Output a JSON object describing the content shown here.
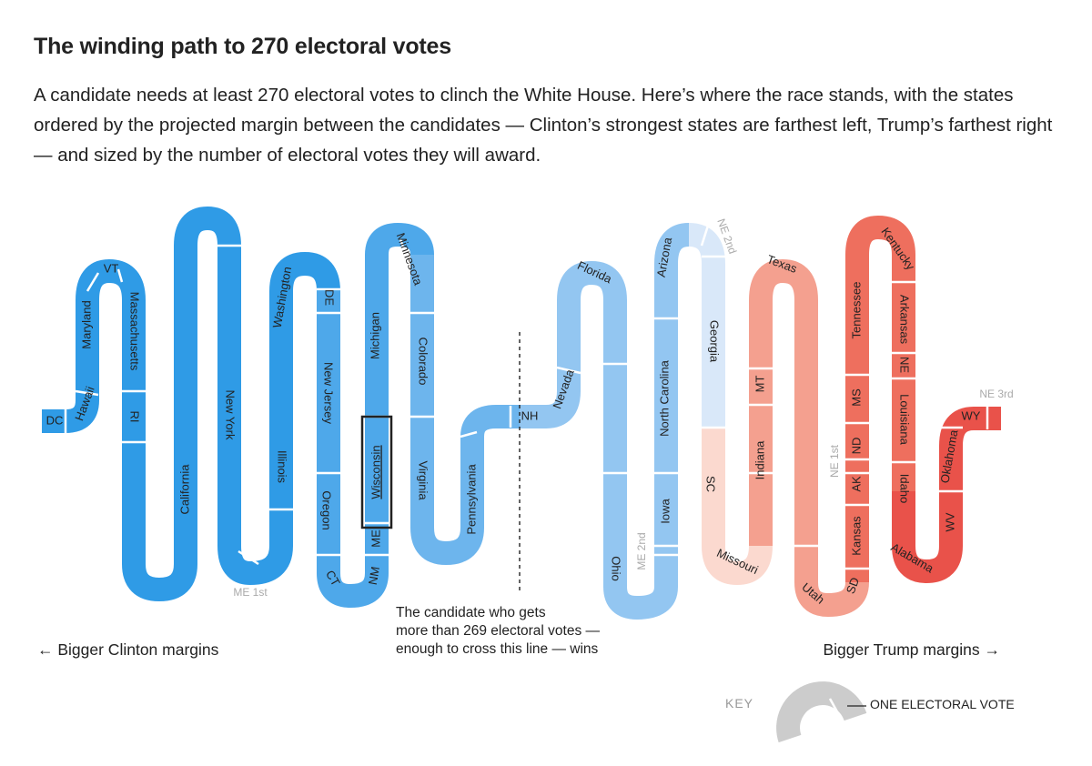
{
  "title": "The winding path to 270 electoral votes",
  "subtitle": "A candidate needs at least 270 electoral votes to clinch the White House. Here’s where the race stands, with the states ordered by the projected margin between the candidates — Clinton’s strongest states are farthest left, Trump’s farthest right — and sized by the number of electoral votes they will award.",
  "threshold_note": [
    "The candidate who gets",
    "more than 269 electoral votes —",
    "enough to cross this line — wins"
  ],
  "left_label": "← Bigger Clinton margins",
  "right_label": "Bigger Trump margins →",
  "key": {
    "label": "KEY",
    "value_label": "ONE ELECTORAL VOTE"
  },
  "colors": {
    "clinton_strong": "#2f9be6",
    "clinton_likely": "#4ea8ea",
    "clinton_lean": "#6db5ed",
    "clinton_tilt": "#93c6f1",
    "clinton_slight": "#d9e8f9",
    "trump_slight": "#fbd9cf",
    "trump_lean": "#f4a08f",
    "trump_likely": "#f28a78",
    "trump_strong": "#ee6f5e",
    "trump_safe": "#e9524a",
    "key_gray": "#cccccc",
    "threshold_line": "#222222",
    "highlight_box": "#222222"
  },
  "chart_data": {
    "type": "diagram",
    "threshold": 270,
    "highlighted": "Wisconsin",
    "states": [
      {
        "name": "DC",
        "ev": 3,
        "party": "Clinton"
      },
      {
        "name": "Hawaii",
        "ev": 4,
        "party": "Clinton"
      },
      {
        "name": "Maryland",
        "ev": 10,
        "party": "Clinton"
      },
      {
        "name": "VT",
        "ev": 3,
        "party": "Clinton"
      },
      {
        "name": "Massachusetts",
        "ev": 11,
        "party": "Clinton"
      },
      {
        "name": "RI",
        "ev": 4,
        "party": "Clinton"
      },
      {
        "name": "California",
        "ev": 55,
        "party": "Clinton"
      },
      {
        "name": "New York",
        "ev": 29,
        "party": "Clinton"
      },
      {
        "name": "ME 1st",
        "ev": 1,
        "party": "Clinton"
      },
      {
        "name": "Illinois",
        "ev": 20,
        "party": "Clinton"
      },
      {
        "name": "Washington",
        "ev": 12,
        "party": "Clinton"
      },
      {
        "name": "DE",
        "ev": 3,
        "party": "Clinton"
      },
      {
        "name": "New Jersey",
        "ev": 14,
        "party": "Clinton"
      },
      {
        "name": "Oregon",
        "ev": 7,
        "party": "Clinton"
      },
      {
        "name": "CT",
        "ev": 7,
        "party": "Clinton"
      },
      {
        "name": "NM",
        "ev": 5,
        "party": "Clinton"
      },
      {
        "name": "ME",
        "ev": 2,
        "party": "Clinton"
      },
      {
        "name": "Wisconsin",
        "ev": 10,
        "party": "Clinton"
      },
      {
        "name": "Michigan",
        "ev": 16,
        "party": "Clinton"
      },
      {
        "name": "Minnesota",
        "ev": 10,
        "party": "Clinton"
      },
      {
        "name": "Colorado",
        "ev": 9,
        "party": "Clinton"
      },
      {
        "name": "Virginia",
        "ev": 13,
        "party": "Clinton"
      },
      {
        "name": "Pennsylvania",
        "ev": 20,
        "party": "Clinton"
      },
      {
        "name": "NH",
        "ev": 4,
        "party": "Clinton"
      },
      {
        "name": "Nevada",
        "ev": 6,
        "party": "Clinton"
      },
      {
        "name": "Florida",
        "ev": 29,
        "party": "Clinton"
      },
      {
        "name": "Ohio",
        "ev": 18,
        "party": "Clinton"
      },
      {
        "name": "ME 2nd",
        "ev": 1,
        "party": "Clinton"
      },
      {
        "name": "Iowa",
        "ev": 6,
        "party": "Clinton"
      },
      {
        "name": "North Carolina",
        "ev": 15,
        "party": "Clinton"
      },
      {
        "name": "Arizona",
        "ev": 11,
        "party": "Clinton"
      },
      {
        "name": "NE 2nd",
        "ev": 1,
        "party": "Clinton"
      },
      {
        "name": "Georgia",
        "ev": 16,
        "party": "Clinton"
      },
      {
        "name": "SC",
        "ev": 9,
        "party": "Trump"
      },
      {
        "name": "Missouri",
        "ev": 10,
        "party": "Trump"
      },
      {
        "name": "Indiana",
        "ev": 11,
        "party": "Trump"
      },
      {
        "name": "MT",
        "ev": 3,
        "party": "Trump"
      },
      {
        "name": "Texas",
        "ev": 38,
        "party": "Trump"
      },
      {
        "name": "Utah",
        "ev": 6,
        "party": "Trump"
      },
      {
        "name": "SD",
        "ev": 3,
        "party": "Trump"
      },
      {
        "name": "Kansas",
        "ev": 6,
        "party": "Trump"
      },
      {
        "name": "AK",
        "ev": 3,
        "party": "Trump"
      },
      {
        "name": "NE 1st",
        "ev": 1,
        "party": "Trump"
      },
      {
        "name": "ND",
        "ev": 3,
        "party": "Trump"
      },
      {
        "name": "MS",
        "ev": 6,
        "party": "Trump"
      },
      {
        "name": "Tennessee",
        "ev": 11,
        "party": "Trump"
      },
      {
        "name": "Kentucky",
        "ev": 8,
        "party": "Trump"
      },
      {
        "name": "Arkansas",
        "ev": 6,
        "party": "Trump"
      },
      {
        "name": "NE",
        "ev": 2,
        "party": "Trump"
      },
      {
        "name": "Louisiana",
        "ev": 8,
        "party": "Trump"
      },
      {
        "name": "Idaho",
        "ev": 4,
        "party": "Trump"
      },
      {
        "name": "Alabama",
        "ev": 9,
        "party": "Trump"
      },
      {
        "name": "WV",
        "ev": 5,
        "party": "Trump"
      },
      {
        "name": "Oklahoma",
        "ev": 7,
        "party": "Trump"
      },
      {
        "name": "WY",
        "ev": 3,
        "party": "Trump"
      },
      {
        "name": "NE 3rd",
        "ev": 1,
        "party": "Trump"
      }
    ]
  },
  "labels": {
    "dc": "DC",
    "hawaii": "Hawaii",
    "maryland": "Maryland",
    "vt": "VT",
    "massachusetts": "Massachusetts",
    "ri": "RI",
    "california": "California",
    "new_york": "New York",
    "me1": "ME 1st",
    "illinois": "Illinois",
    "washington": "Washington",
    "de": "DE",
    "new_jersey": "New Jersey",
    "oregon": "Oregon",
    "ct": "CT",
    "nm": "NM",
    "me": "ME",
    "wisconsin": "Wisconsin",
    "michigan": "Michigan",
    "minnesota": "Minnesota",
    "colorado": "Colorado",
    "virginia": "Virginia",
    "pennsylvania": "Pennsylvania",
    "nh": "NH",
    "nevada": "Nevada",
    "florida": "Florida",
    "ohio": "Ohio",
    "me2": "ME 2nd",
    "iowa": "Iowa",
    "north_carolina": "North Carolina",
    "arizona": "Arizona",
    "ne2": "NE 2nd",
    "georgia": "Georgia",
    "sc": "SC",
    "missouri": "Missouri",
    "indiana": "Indiana",
    "mt": "MT",
    "texas": "Texas",
    "utah": "Utah",
    "sd": "SD",
    "kansas": "Kansas",
    "ak": "AK",
    "ne1": "NE 1st",
    "nd": "ND",
    "ms": "MS",
    "tennessee": "Tennessee",
    "kentucky": "Kentucky",
    "arkansas": "Arkansas",
    "ne": "NE",
    "louisiana": "Louisiana",
    "idaho": "Idaho",
    "alabama": "Alabama",
    "wv": "WV",
    "oklahoma": "Oklahoma",
    "wy": "WY",
    "ne3": "NE 3rd"
  }
}
